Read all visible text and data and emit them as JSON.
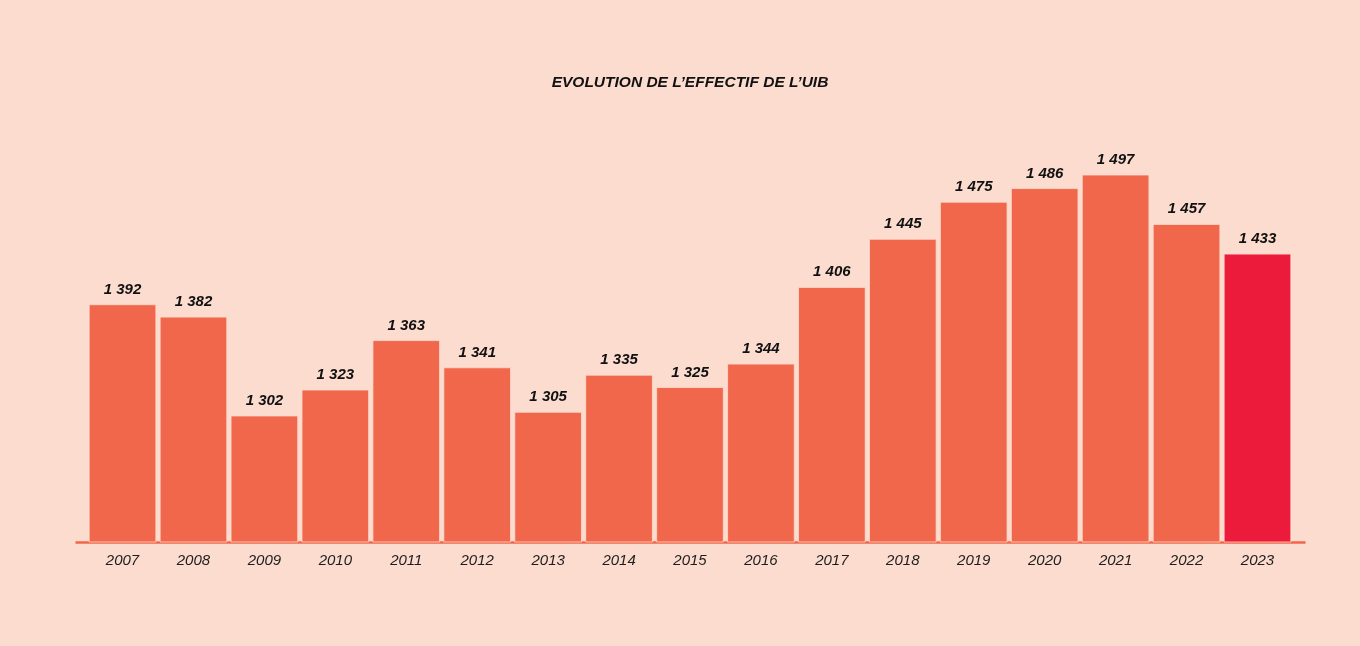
{
  "chart_data": {
    "type": "bar",
    "title": "EVOLUTION DE L’EFFECTIF DE L’UIB",
    "categories": [
      "2007",
      "2008",
      "2009",
      "2010",
      "2011",
      "2012",
      "2013",
      "2014",
      "2015",
      "2016",
      "2017",
      "2018",
      "2019",
      "2020",
      "2021",
      "2022",
      "2023"
    ],
    "values": [
      1392,
      1382,
      1302,
      1323,
      1363,
      1341,
      1305,
      1335,
      1325,
      1344,
      1406,
      1445,
      1475,
      1486,
      1497,
      1457,
      1433
    ],
    "value_labels": [
      "1 392",
      "1 382",
      "1 302",
      "1 323",
      "1 363",
      "1 341",
      "1 305",
      "1 335",
      "1 325",
      "1 344",
      "1 406",
      "1 445",
      "1 475",
      "1 486",
      "1 497",
      "1 457",
      "1 433"
    ],
    "colors": [
      "#f1674b",
      "#f1674b",
      "#f1674b",
      "#f1674b",
      "#f1674b",
      "#f1674b",
      "#f1674b",
      "#f1674b",
      "#f1674b",
      "#f1674b",
      "#f1674b",
      "#f1674b",
      "#f1674b",
      "#f1674b",
      "#f1674b",
      "#f1674b",
      "#ec1a3b"
    ],
    "ylim": [
      1200,
      1497
    ],
    "tick_labels": "x"
  }
}
